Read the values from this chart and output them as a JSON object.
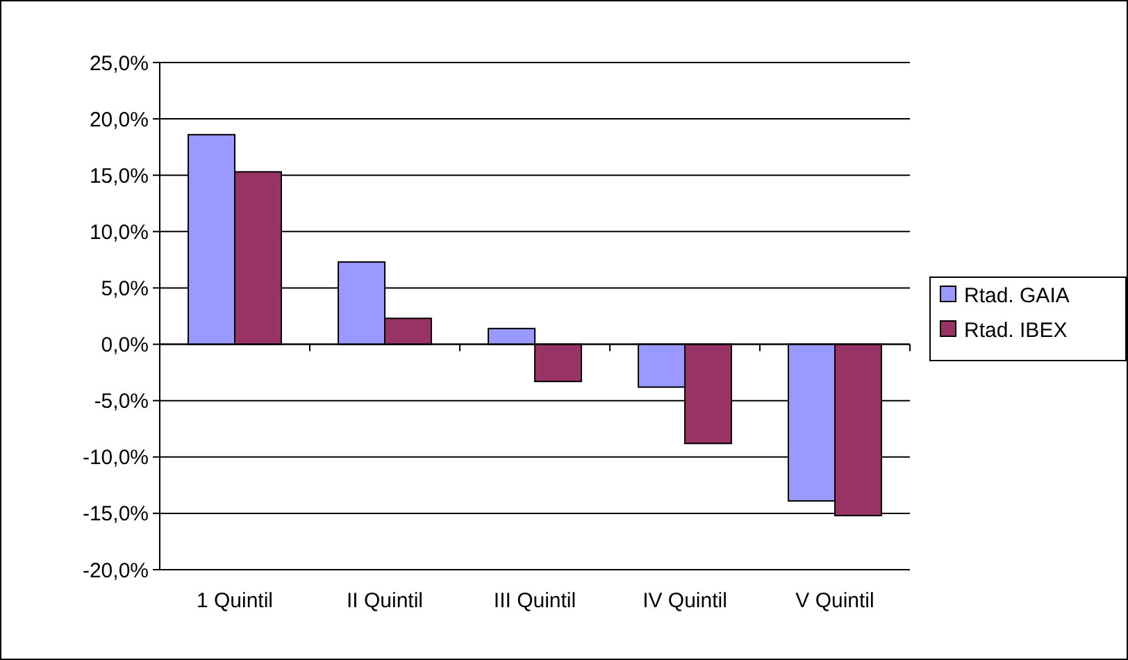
{
  "chart_data": {
    "type": "bar",
    "categories": [
      "1 Quintil",
      "II Quintil",
      "III Quintil",
      "IV Quintil",
      "V Quintil"
    ],
    "series": [
      {
        "name": "Rtad. GAIA",
        "color": "#9999ff",
        "values": [
          18.6,
          7.3,
          1.4,
          -3.8,
          -13.9
        ]
      },
      {
        "name": "Rtad. IBEX",
        "color": "#993366",
        "values": [
          15.3,
          2.3,
          -3.3,
          -8.8,
          -15.2
        ]
      }
    ],
    "ylim": [
      -20,
      25
    ],
    "yticks": [
      {
        "value": -20,
        "label": "-20,0%"
      },
      {
        "value": -15,
        "label": "-15,0%"
      },
      {
        "value": -10,
        "label": "-10,0%"
      },
      {
        "value": -5,
        "label": "-5,0%"
      },
      {
        "value": 0,
        "label": "0,0%"
      },
      {
        "value": 5,
        "label": "5,0%"
      },
      {
        "value": 10,
        "label": "10,0%"
      },
      {
        "value": 15,
        "label": "15,0%"
      },
      {
        "value": 20,
        "label": "20,0%"
      },
      {
        "value": 25,
        "label": "25,0%"
      }
    ],
    "grid": "y",
    "legend": "right"
  }
}
